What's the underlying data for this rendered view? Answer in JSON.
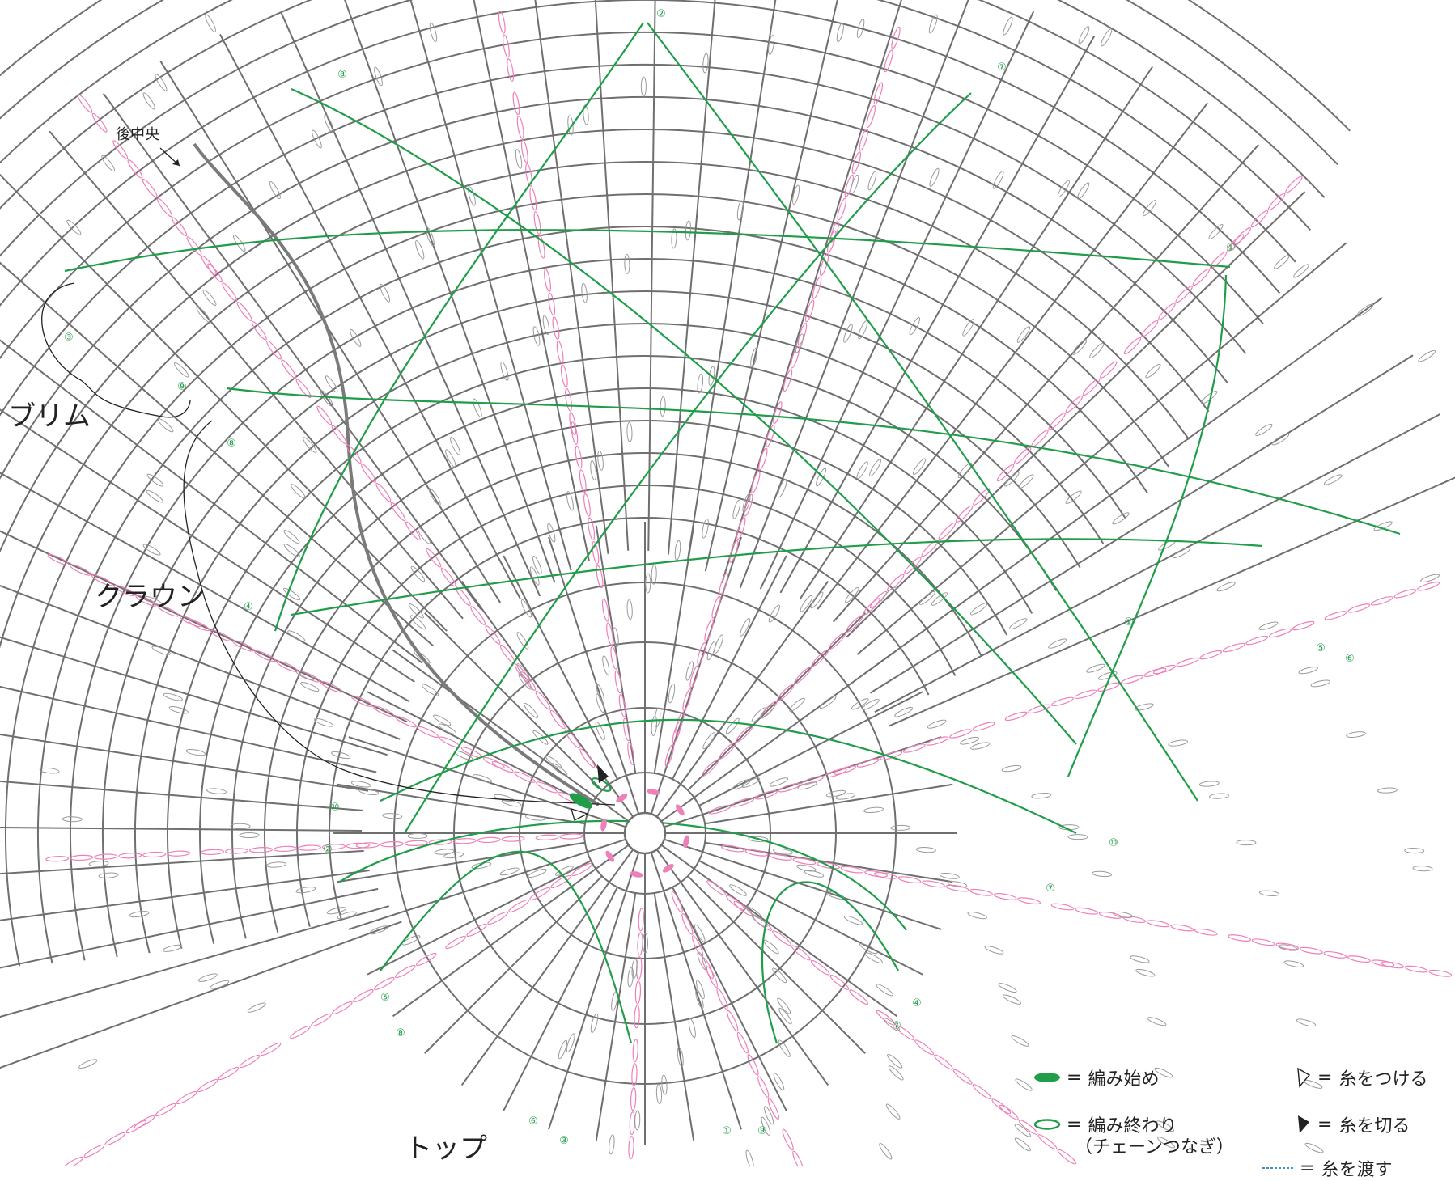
{
  "labels": {
    "brim": "ブリム",
    "crown": "クラウン",
    "top": "トップ",
    "back_center": "後中央"
  },
  "round_markers": [
    "①",
    "②",
    "③",
    "④",
    "⑤",
    "⑥",
    "⑦",
    "⑧",
    "⑨",
    "⑩"
  ],
  "legend": {
    "start": "編み始め",
    "end": "編み終わり",
    "end_note": "（チェーンつなぎ）",
    "join_yarn": "糸をつける",
    "cut_yarn": "糸を切る",
    "carry_yarn": "糸を渡す",
    "equals": "="
  },
  "colors": {
    "grid": "#6f6f6f",
    "green": "#1f9d49",
    "pink": "#ef7fb9",
    "gray_stitch": "#9a9a9a",
    "background": "#ffffff"
  }
}
